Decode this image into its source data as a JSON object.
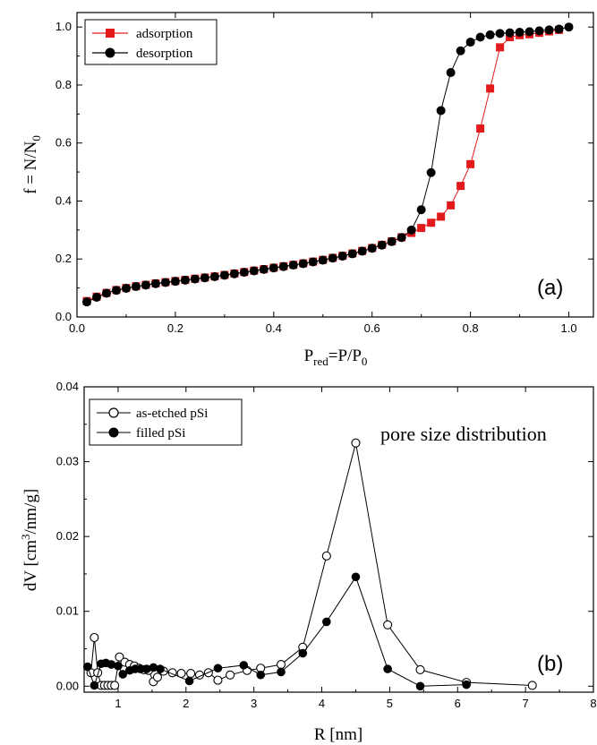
{
  "chart_data": [
    {
      "type": "line",
      "panel_label": "(a)",
      "xlabel": {
        "main": "P",
        "sub1": "red",
        "mid": "=P/P",
        "sub2": "0"
      },
      "ylabel": {
        "main": "f = N/N",
        "sub": "0"
      },
      "xlim": [
        0,
        1.05
      ],
      "ylim": [
        0,
        1.05
      ],
      "xticks": [
        0.0,
        0.2,
        0.4,
        0.6,
        0.8,
        1.0
      ],
      "xtick_labels": [
        "0.0",
        "0.2",
        "0.4",
        "0.6",
        "0.8",
        "1.0"
      ],
      "yticks": [
        0.0,
        0.2,
        0.4,
        0.6,
        0.8,
        1.0
      ],
      "ytick_labels": [
        "0.0",
        "0.2",
        "0.4",
        "0.6",
        "0.8",
        "1.0"
      ],
      "grid": false,
      "legend_position": "top-left",
      "series": [
        {
          "name": "adsorption",
          "color": "#e31a1c",
          "marker": "square-filled",
          "x": [
            0.02,
            0.04,
            0.06,
            0.08,
            0.1,
            0.12,
            0.14,
            0.16,
            0.18,
            0.2,
            0.22,
            0.24,
            0.26,
            0.28,
            0.3,
            0.32,
            0.34,
            0.36,
            0.38,
            0.4,
            0.42,
            0.44,
            0.46,
            0.48,
            0.5,
            0.52,
            0.54,
            0.56,
            0.58,
            0.6,
            0.62,
            0.64,
            0.66,
            0.68,
            0.7,
            0.72,
            0.74,
            0.76,
            0.78,
            0.8,
            0.82,
            0.84,
            0.86,
            0.88,
            0.9,
            0.92,
            0.94,
            0.96,
            0.98
          ],
          "y": [
            0.055,
            0.07,
            0.083,
            0.093,
            0.1,
            0.106,
            0.111,
            0.116,
            0.12,
            0.124,
            0.128,
            0.132,
            0.136,
            0.14,
            0.145,
            0.15,
            0.155,
            0.16,
            0.165,
            0.17,
            0.175,
            0.18,
            0.185,
            0.191,
            0.197,
            0.204,
            0.211,
            0.219,
            0.228,
            0.238,
            0.249,
            0.261,
            0.275,
            0.29,
            0.307,
            0.325,
            0.346,
            0.385,
            0.452,
            0.527,
            0.65,
            0.788,
            0.93,
            0.965,
            0.972,
            0.975,
            0.98,
            0.985,
            0.99
          ]
        },
        {
          "name": "desorption",
          "color": "#000000",
          "marker": "circle-filled",
          "x": [
            0.02,
            0.04,
            0.06,
            0.08,
            0.1,
            0.12,
            0.14,
            0.16,
            0.18,
            0.2,
            0.22,
            0.24,
            0.26,
            0.28,
            0.3,
            0.32,
            0.34,
            0.36,
            0.38,
            0.4,
            0.42,
            0.44,
            0.46,
            0.48,
            0.5,
            0.52,
            0.54,
            0.56,
            0.58,
            0.6,
            0.62,
            0.64,
            0.66,
            0.68,
            0.7,
            0.72,
            0.74,
            0.76,
            0.78,
            0.8,
            0.82,
            0.84,
            0.86,
            0.88,
            0.9,
            0.92,
            0.94,
            0.96,
            0.98,
            1.0
          ],
          "y": [
            0.052,
            0.068,
            0.082,
            0.092,
            0.099,
            0.105,
            0.11,
            0.115,
            0.119,
            0.123,
            0.127,
            0.131,
            0.135,
            0.139,
            0.144,
            0.149,
            0.154,
            0.159,
            0.164,
            0.169,
            0.174,
            0.179,
            0.184,
            0.19,
            0.196,
            0.203,
            0.21,
            0.218,
            0.227,
            0.237,
            0.248,
            0.26,
            0.274,
            0.3,
            0.37,
            0.498,
            0.712,
            0.843,
            0.918,
            0.948,
            0.965,
            0.973,
            0.978,
            0.98,
            0.982,
            0.984,
            0.987,
            0.99,
            0.993,
            1.0
          ]
        }
      ]
    },
    {
      "type": "line",
      "panel_label": "(b)",
      "annotation": "pore size distribution",
      "xlabel": {
        "main": "R [nm]"
      },
      "ylabel": {
        "pre": "dV [cm",
        "sup": "3",
        "post": "/nm/g]"
      },
      "xlim": [
        0.5,
        8
      ],
      "ylim": [
        -0.0008,
        0.04
      ],
      "xticks": [
        1,
        2,
        3,
        4,
        5,
        6,
        7,
        8
      ],
      "xtick_labels": [
        "1",
        "2",
        "3",
        "4",
        "5",
        "6",
        "7",
        "8"
      ],
      "yticks": [
        0.0,
        0.01,
        0.02,
        0.03,
        0.04
      ],
      "ytick_labels": [
        "0.00",
        "0.01",
        "0.02",
        "0.03",
        "0.04"
      ],
      "grid": false,
      "legend_position": "top-left",
      "series": [
        {
          "name": "as-etched pSi",
          "color": "#000000",
          "marker": "circle-open",
          "x": [
            0.6,
            0.65,
            0.7,
            0.75,
            0.8,
            0.85,
            0.9,
            0.95,
            1.02,
            1.1,
            1.17,
            1.24,
            1.31,
            1.38,
            1.45,
            1.52,
            1.58,
            1.67,
            1.8,
            1.93,
            2.07,
            2.2,
            2.33,
            2.47,
            2.65,
            2.9,
            3.1,
            3.4,
            3.72,
            4.07,
            4.5,
            4.97,
            5.45,
            6.13,
            7.1
          ],
          "y": [
            0.0018,
            0.0065,
            0.0018,
            0.0001,
            0.0001,
            0.0001,
            0.0001,
            0.0001,
            0.0039,
            0.0032,
            0.0029,
            0.0027,
            0.0024,
            0.0022,
            0.0021,
            0.0006,
            0.0012,
            0.002,
            0.0018,
            0.0017,
            0.0017,
            0.0015,
            0.0018,
            0.0008,
            0.0015,
            0.0021,
            0.0024,
            0.0029,
            0.0052,
            0.0174,
            0.0325,
            0.0082,
            0.0022,
            0.0005,
            0.0001
          ]
        },
        {
          "name": "filled pSi",
          "color": "#000000",
          "marker": "circle-filled",
          "x": [
            0.55,
            0.65,
            0.75,
            0.82,
            0.9,
            1.0,
            1.07,
            1.17,
            1.25,
            1.33,
            1.42,
            1.52,
            1.62,
            2.05,
            2.47,
            2.85,
            3.1,
            3.4,
            3.72,
            4.07,
            4.5,
            4.97,
            5.45,
            6.13
          ],
          "y": [
            0.0026,
            0.0001,
            0.003,
            0.0031,
            0.0029,
            0.0027,
            0.0016,
            0.0021,
            0.0023,
            0.0023,
            0.0023,
            0.0025,
            0.0023,
            0.0007,
            0.0024,
            0.0028,
            0.0015,
            0.0019,
            0.0044,
            0.0086,
            0.0146,
            0.0023,
            0.0,
            0.0002
          ]
        }
      ]
    }
  ]
}
